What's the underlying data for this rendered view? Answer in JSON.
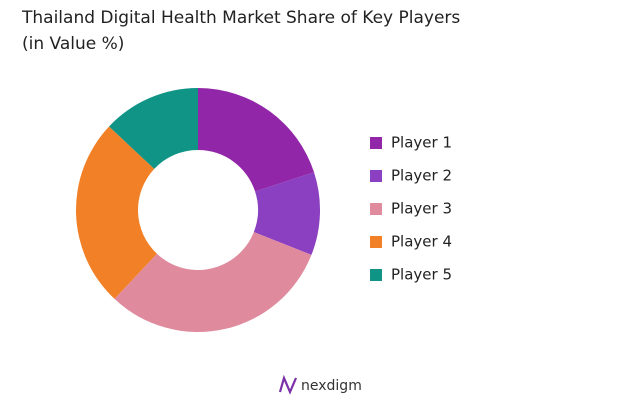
{
  "chart_data": {
    "type": "donut",
    "title": "Thailand Digital Health Market Share of Key Players",
    "subtitle": "(in Value %)",
    "categories": [
      "Player 1",
      "Player 2",
      "Player 3",
      "Player 4",
      "Player 5"
    ],
    "values": [
      20,
      11,
      31,
      25,
      13
    ],
    "colors": [
      "#9126a8",
      "#8a40c0",
      "#df8a9d",
      "#f28026",
      "#0f9485"
    ],
    "legend": "right"
  },
  "footer": {
    "logo": "nexdigm"
  }
}
